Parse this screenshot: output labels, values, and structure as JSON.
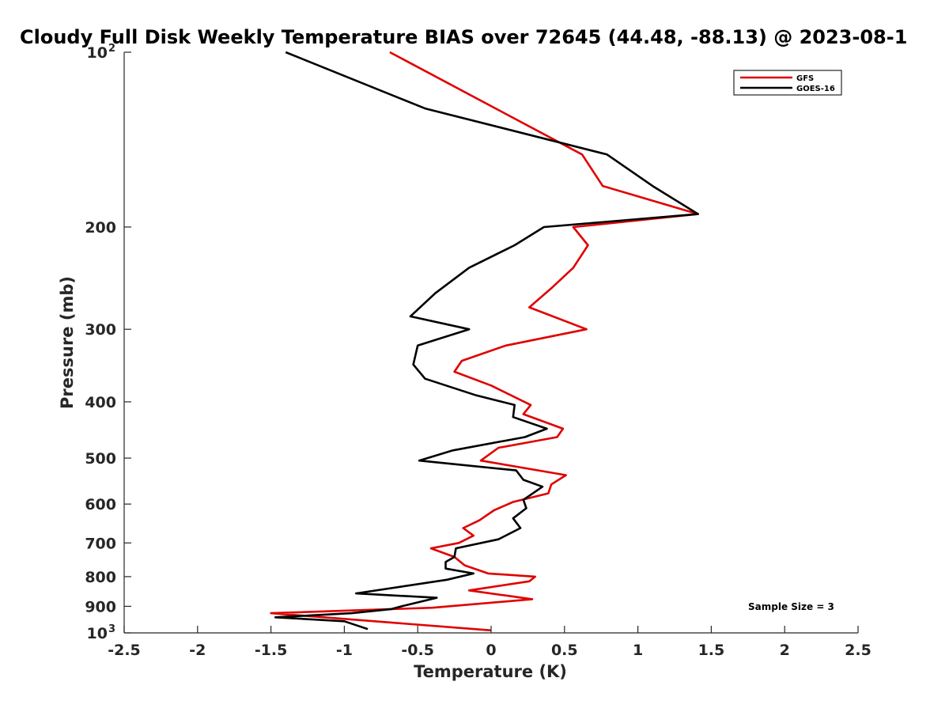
{
  "chart_data": {
    "type": "line",
    "title": "Cloudy Full Disk Weekly Temperature BIAS over 72645 (44.48, -88.13) @ 2023-08-1",
    "xlabel": "Temperature (K)",
    "ylabel": "Pressure (mb)",
    "xlim": [
      -2.5,
      2.5
    ],
    "ylim": [
      100,
      1000
    ],
    "y_scale": "log",
    "y_direction": "reversed",
    "grid": false,
    "legend_position": "top-right",
    "x_ticks": [
      "-2.5",
      "-2",
      "-1.5",
      "-1",
      "-0.5",
      "0",
      "0.5",
      "1",
      "1.5",
      "2",
      "2.5"
    ],
    "x_tick_values": [
      -2.5,
      -2,
      -1.5,
      -1,
      -0.5,
      0,
      0.5,
      1,
      1.5,
      2,
      2.5
    ],
    "y_ticks": [
      {
        "value": 100,
        "base": "10",
        "exp": "2"
      },
      {
        "value": 200,
        "label": "200"
      },
      {
        "value": 300,
        "label": "300"
      },
      {
        "value": 400,
        "label": "400"
      },
      {
        "value": 500,
        "label": "500"
      },
      {
        "value": 600,
        "label": "600"
      },
      {
        "value": 700,
        "label": "700"
      },
      {
        "value": 800,
        "label": "800"
      },
      {
        "value": 900,
        "label": "900"
      },
      {
        "value": 1000,
        "base": "10",
        "exp": "3"
      }
    ],
    "annotation": "Sample Size = 3",
    "series": [
      {
        "name": "GFS",
        "color": "#e00000",
        "points": [
          [
            -0.69,
            100
          ],
          [
            0.62,
            150
          ],
          [
            0.76,
            170
          ],
          [
            1.41,
            190
          ],
          [
            0.56,
            200
          ],
          [
            0.66,
            215
          ],
          [
            0.56,
            235
          ],
          [
            0.41,
            255
          ],
          [
            0.26,
            275
          ],
          [
            0.65,
            300
          ],
          [
            0.1,
            320
          ],
          [
            -0.2,
            340
          ],
          [
            -0.25,
            355
          ],
          [
            0.0,
            375
          ],
          [
            0.27,
            405
          ],
          [
            0.22,
            420
          ],
          [
            0.49,
            445
          ],
          [
            0.45,
            460
          ],
          [
            0.05,
            480
          ],
          [
            -0.07,
            505
          ],
          [
            0.51,
            535
          ],
          [
            0.41,
            555
          ],
          [
            0.39,
            575
          ],
          [
            0.15,
            595
          ],
          [
            0.02,
            615
          ],
          [
            -0.08,
            640
          ],
          [
            -0.19,
            660
          ],
          [
            -0.12,
            680
          ],
          [
            -0.22,
            700
          ],
          [
            -0.41,
            715
          ],
          [
            -0.25,
            740
          ],
          [
            -0.18,
            765
          ],
          [
            -0.02,
            790
          ],
          [
            0.3,
            800
          ],
          [
            0.26,
            815
          ],
          [
            -0.15,
            845
          ],
          [
            0.28,
            875
          ],
          [
            -0.4,
            905
          ],
          [
            -1.5,
            925
          ],
          [
            0.0,
            990
          ]
        ]
      },
      {
        "name": "GOES-16",
        "color": "#000000",
        "points": [
          [
            -1.4,
            100
          ],
          [
            -0.45,
            125
          ],
          [
            0.79,
            150
          ],
          [
            1.1,
            170
          ],
          [
            1.41,
            190
          ],
          [
            0.36,
            200
          ],
          [
            0.16,
            215
          ],
          [
            -0.15,
            235
          ],
          [
            -0.38,
            260
          ],
          [
            -0.55,
            285
          ],
          [
            -0.15,
            300
          ],
          [
            -0.5,
            320
          ],
          [
            -0.53,
            345
          ],
          [
            -0.45,
            365
          ],
          [
            -0.1,
            390
          ],
          [
            0.16,
            405
          ],
          [
            0.15,
            425
          ],
          [
            0.38,
            445
          ],
          [
            0.23,
            460
          ],
          [
            -0.26,
            485
          ],
          [
            -0.49,
            505
          ],
          [
            0.17,
            525
          ],
          [
            0.22,
            545
          ],
          [
            0.35,
            560
          ],
          [
            0.22,
            590
          ],
          [
            0.24,
            610
          ],
          [
            0.15,
            635
          ],
          [
            0.2,
            660
          ],
          [
            0.05,
            690
          ],
          [
            -0.24,
            715
          ],
          [
            -0.25,
            740
          ],
          [
            -0.31,
            755
          ],
          [
            -0.31,
            775
          ],
          [
            -0.12,
            790
          ],
          [
            -0.3,
            810
          ],
          [
            -0.92,
            855
          ],
          [
            -0.37,
            870
          ],
          [
            -0.61,
            900
          ],
          [
            -0.68,
            910
          ],
          [
            -0.95,
            925
          ],
          [
            -1.47,
            940
          ],
          [
            -1.0,
            955
          ],
          [
            -0.84,
            985
          ]
        ]
      }
    ]
  }
}
